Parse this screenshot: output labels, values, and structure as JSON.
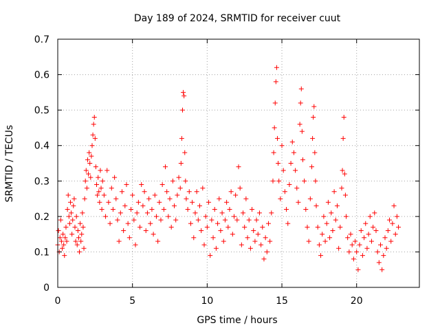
{
  "chart_data": {
    "type": "scatter",
    "title": "Day 189 of 2024, SRMTID for receiver cuut",
    "xlabel": "GPS time / hours",
    "ylabel": "SRMTID / TECUs",
    "xlim": [
      0,
      24.2
    ],
    "ylim": [
      0,
      0.7
    ],
    "xticks": [
      0,
      5,
      10,
      15,
      20
    ],
    "yticks": [
      0,
      0.1,
      0.2,
      0.3,
      0.4,
      0.5,
      0.6,
      0.7
    ],
    "xtick_labels": [
      "0",
      "5",
      "10",
      "15",
      "20"
    ],
    "ytick_labels": [
      "0",
      "0.1",
      "0.2",
      "0.3",
      "0.4",
      "0.5",
      "0.6",
      "0.7"
    ],
    "grid": true,
    "marker": "+",
    "color": "#ff0000",
    "series": [
      {
        "name": "SRMTID",
        "points": [
          [
            0.0,
            0.12
          ],
          [
            0.05,
            0.16
          ],
          [
            0.1,
            0.1
          ],
          [
            0.15,
            0.14
          ],
          [
            0.2,
            0.19
          ],
          [
            0.25,
            0.13
          ],
          [
            0.3,
            0.11
          ],
          [
            0.35,
            0.15
          ],
          [
            0.4,
            0.12
          ],
          [
            0.45,
            0.09
          ],
          [
            0.5,
            0.14
          ],
          [
            0.55,
            0.17
          ],
          [
            0.6,
            0.13
          ],
          [
            0.65,
            0.22
          ],
          [
            0.7,
            0.26
          ],
          [
            0.75,
            0.2
          ],
          [
            0.8,
            0.18
          ],
          [
            0.85,
            0.24
          ],
          [
            0.9,
            0.21
          ],
          [
            0.95,
            0.15
          ],
          [
            1.0,
            0.19
          ],
          [
            1.05,
            0.23
          ],
          [
            1.1,
            0.25
          ],
          [
            1.15,
            0.17
          ],
          [
            1.2,
            0.13
          ],
          [
            1.25,
            0.2
          ],
          [
            1.3,
            0.12
          ],
          [
            1.35,
            0.16
          ],
          [
            1.4,
            0.14
          ],
          [
            1.45,
            0.1
          ],
          [
            1.5,
            0.18
          ],
          [
            1.55,
            0.13
          ],
          [
            1.6,
            0.15
          ],
          [
            1.65,
            0.21
          ],
          [
            1.7,
            0.17
          ],
          [
            1.75,
            0.11
          ],
          [
            1.8,
            0.25
          ],
          [
            1.85,
            0.3
          ],
          [
            1.9,
            0.33
          ],
          [
            1.95,
            0.28
          ],
          [
            2.0,
            0.36
          ],
          [
            2.05,
            0.32
          ],
          [
            2.1,
            0.38
          ],
          [
            2.15,
            0.35
          ],
          [
            2.2,
            0.31
          ],
          [
            2.25,
            0.37
          ],
          [
            2.3,
            0.4
          ],
          [
            2.35,
            0.43
          ],
          [
            2.4,
            0.46
          ],
          [
            2.45,
            0.48
          ],
          [
            2.5,
            0.42
          ],
          [
            2.55,
            0.34
          ],
          [
            2.6,
            0.29
          ],
          [
            2.65,
            0.26
          ],
          [
            2.7,
            0.31
          ],
          [
            2.75,
            0.27
          ],
          [
            2.8,
            0.24
          ],
          [
            2.85,
            0.33
          ],
          [
            2.9,
            0.28
          ],
          [
            2.95,
            0.22
          ],
          [
            3.0,
            0.3
          ],
          [
            3.1,
            0.26
          ],
          [
            3.2,
            0.2
          ],
          [
            3.3,
            0.33
          ],
          [
            3.4,
            0.24
          ],
          [
            3.5,
            0.18
          ],
          [
            3.6,
            0.28
          ],
          [
            3.7,
            0.22
          ],
          [
            3.8,
            0.31
          ],
          [
            3.9,
            0.25
          ],
          [
            4.0,
            0.19
          ],
          [
            4.1,
            0.13
          ],
          [
            4.2,
            0.21
          ],
          [
            4.3,
            0.27
          ],
          [
            4.4,
            0.16
          ],
          [
            4.5,
            0.23
          ],
          [
            4.6,
            0.29
          ],
          [
            4.7,
            0.18
          ],
          [
            4.8,
            0.14
          ],
          [
            4.9,
            0.22
          ],
          [
            5.0,
            0.26
          ],
          [
            5.1,
            0.19
          ],
          [
            5.2,
            0.12
          ],
          [
            5.3,
            0.21
          ],
          [
            5.4,
            0.24
          ],
          [
            5.5,
            0.17
          ],
          [
            5.6,
            0.29
          ],
          [
            5.7,
            0.23
          ],
          [
            5.8,
            0.27
          ],
          [
            5.9,
            0.16
          ],
          [
            6.0,
            0.21
          ],
          [
            6.1,
            0.25
          ],
          [
            6.2,
            0.18
          ],
          [
            6.3,
            0.22
          ],
          [
            6.4,
            0.15
          ],
          [
            6.5,
            0.26
          ],
          [
            6.6,
            0.2
          ],
          [
            6.7,
            0.13
          ],
          [
            6.8,
            0.24
          ],
          [
            6.9,
            0.19
          ],
          [
            7.0,
            0.29
          ],
          [
            7.1,
            0.22
          ],
          [
            7.2,
            0.34
          ],
          [
            7.3,
            0.27
          ],
          [
            7.4,
            0.2
          ],
          [
            7.5,
            0.25
          ],
          [
            7.6,
            0.17
          ],
          [
            7.7,
            0.3
          ],
          [
            7.8,
            0.23
          ],
          [
            7.9,
            0.19
          ],
          [
            8.0,
            0.26
          ],
          [
            8.1,
            0.31
          ],
          [
            8.2,
            0.28
          ],
          [
            8.25,
            0.35
          ],
          [
            8.3,
            0.42
          ],
          [
            8.35,
            0.5
          ],
          [
            8.4,
            0.55
          ],
          [
            8.45,
            0.54
          ],
          [
            8.5,
            0.38
          ],
          [
            8.55,
            0.3
          ],
          [
            8.6,
            0.25
          ],
          [
            8.7,
            0.22
          ],
          [
            8.8,
            0.27
          ],
          [
            8.9,
            0.18
          ],
          [
            9.0,
            0.24
          ],
          [
            9.1,
            0.14
          ],
          [
            9.2,
            0.21
          ],
          [
            9.3,
            0.27
          ],
          [
            9.4,
            0.19
          ],
          [
            9.5,
            0.23
          ],
          [
            9.6,
            0.16
          ],
          [
            9.7,
            0.28
          ],
          [
            9.8,
            0.12
          ],
          [
            9.9,
            0.2
          ],
          [
            10.0,
            0.17
          ],
          [
            10.1,
            0.24
          ],
          [
            10.2,
            0.09
          ],
          [
            10.3,
            0.19
          ],
          [
            10.4,
            0.14
          ],
          [
            10.5,
            0.22
          ],
          [
            10.6,
            0.11
          ],
          [
            10.7,
            0.18
          ],
          [
            10.8,
            0.25
          ],
          [
            10.9,
            0.16
          ],
          [
            11.0,
            0.21
          ],
          [
            11.1,
            0.13
          ],
          [
            11.2,
            0.19
          ],
          [
            11.3,
            0.24
          ],
          [
            11.4,
            0.17
          ],
          [
            11.5,
            0.22
          ],
          [
            11.6,
            0.27
          ],
          [
            11.7,
            0.15
          ],
          [
            11.8,
            0.2
          ],
          [
            11.9,
            0.26
          ],
          [
            12.0,
            0.19
          ],
          [
            12.1,
            0.34
          ],
          [
            12.2,
            0.28
          ],
          [
            12.3,
            0.12
          ],
          [
            12.4,
            0.21
          ],
          [
            12.5,
            0.17
          ],
          [
            12.6,
            0.25
          ],
          [
            12.7,
            0.14
          ],
          [
            12.8,
            0.19
          ],
          [
            12.9,
            0.11
          ],
          [
            13.0,
            0.22
          ],
          [
            13.1,
            0.16
          ],
          [
            13.2,
            0.13
          ],
          [
            13.3,
            0.19
          ],
          [
            13.4,
            0.15
          ],
          [
            13.5,
            0.21
          ],
          [
            13.6,
            0.12
          ],
          [
            13.7,
            0.17
          ],
          [
            13.8,
            0.08
          ],
          [
            13.9,
            0.14
          ],
          [
            14.0,
            0.1
          ],
          [
            14.1,
            0.18
          ],
          [
            14.2,
            0.13
          ],
          [
            14.3,
            0.21
          ],
          [
            14.4,
            0.3
          ],
          [
            14.45,
            0.38
          ],
          [
            14.5,
            0.45
          ],
          [
            14.55,
            0.52
          ],
          [
            14.6,
            0.58
          ],
          [
            14.65,
            0.62
          ],
          [
            14.7,
            0.42
          ],
          [
            14.75,
            0.35
          ],
          [
            14.8,
            0.3
          ],
          [
            14.9,
            0.25
          ],
          [
            15.0,
            0.4
          ],
          [
            15.1,
            0.33
          ],
          [
            15.2,
            0.27
          ],
          [
            15.3,
            0.22
          ],
          [
            15.4,
            0.18
          ],
          [
            15.5,
            0.29
          ],
          [
            15.6,
            0.35
          ],
          [
            15.7,
            0.41
          ],
          [
            15.8,
            0.38
          ],
          [
            15.9,
            0.33
          ],
          [
            16.0,
            0.28
          ],
          [
            16.1,
            0.24
          ],
          [
            16.2,
            0.46
          ],
          [
            16.25,
            0.52
          ],
          [
            16.3,
            0.56
          ],
          [
            16.35,
            0.44
          ],
          [
            16.4,
            0.36
          ],
          [
            16.5,
            0.3
          ],
          [
            16.6,
            0.22
          ],
          [
            16.7,
            0.17
          ],
          [
            16.8,
            0.13
          ],
          [
            16.9,
            0.25
          ],
          [
            17.0,
            0.34
          ],
          [
            17.05,
            0.42
          ],
          [
            17.1,
            0.48
          ],
          [
            17.15,
            0.51
          ],
          [
            17.2,
            0.38
          ],
          [
            17.25,
            0.3
          ],
          [
            17.3,
            0.23
          ],
          [
            17.4,
            0.17
          ],
          [
            17.5,
            0.12
          ],
          [
            17.6,
            0.09
          ],
          [
            17.7,
            0.15
          ],
          [
            17.8,
            0.2
          ],
          [
            17.9,
            0.13
          ],
          [
            18.0,
            0.18
          ],
          [
            18.1,
            0.24
          ],
          [
            18.2,
            0.14
          ],
          [
            18.3,
            0.21
          ],
          [
            18.4,
            0.16
          ],
          [
            18.5,
            0.27
          ],
          [
            18.6,
            0.19
          ],
          [
            18.7,
            0.23
          ],
          [
            18.8,
            0.11
          ],
          [
            18.9,
            0.17
          ],
          [
            19.0,
            0.28
          ],
          [
            19.05,
            0.33
          ],
          [
            19.1,
            0.42
          ],
          [
            19.15,
            0.48
          ],
          [
            19.2,
            0.32
          ],
          [
            19.25,
            0.26
          ],
          [
            19.3,
            0.2
          ],
          [
            19.4,
            0.14
          ],
          [
            19.5,
            0.1
          ],
          [
            19.6,
            0.15
          ],
          [
            19.7,
            0.12
          ],
          [
            19.8,
            0.08
          ],
          [
            19.9,
            0.13
          ],
          [
            20.0,
            0.1
          ],
          [
            20.1,
            0.05
          ],
          [
            20.2,
            0.12
          ],
          [
            20.3,
            0.16
          ],
          [
            20.4,
            0.09
          ],
          [
            20.5,
            0.14
          ],
          [
            20.6,
            0.18
          ],
          [
            20.7,
            0.11
          ],
          [
            20.8,
            0.15
          ],
          [
            20.9,
            0.2
          ],
          [
            21.0,
            0.13
          ],
          [
            21.1,
            0.17
          ],
          [
            21.2,
            0.21
          ],
          [
            21.3,
            0.16
          ],
          [
            21.4,
            0.1
          ],
          [
            21.5,
            0.07
          ],
          [
            21.6,
            0.12
          ],
          [
            21.7,
            0.05
          ],
          [
            21.8,
            0.09
          ],
          [
            21.9,
            0.14
          ],
          [
            22.0,
            0.11
          ],
          [
            22.1,
            0.16
          ],
          [
            22.2,
            0.19
          ],
          [
            22.3,
            0.13
          ],
          [
            22.4,
            0.18
          ],
          [
            22.5,
            0.23
          ],
          [
            22.6,
            0.15
          ],
          [
            22.7,
            0.2
          ],
          [
            22.8,
            0.17
          ]
        ]
      }
    ]
  }
}
